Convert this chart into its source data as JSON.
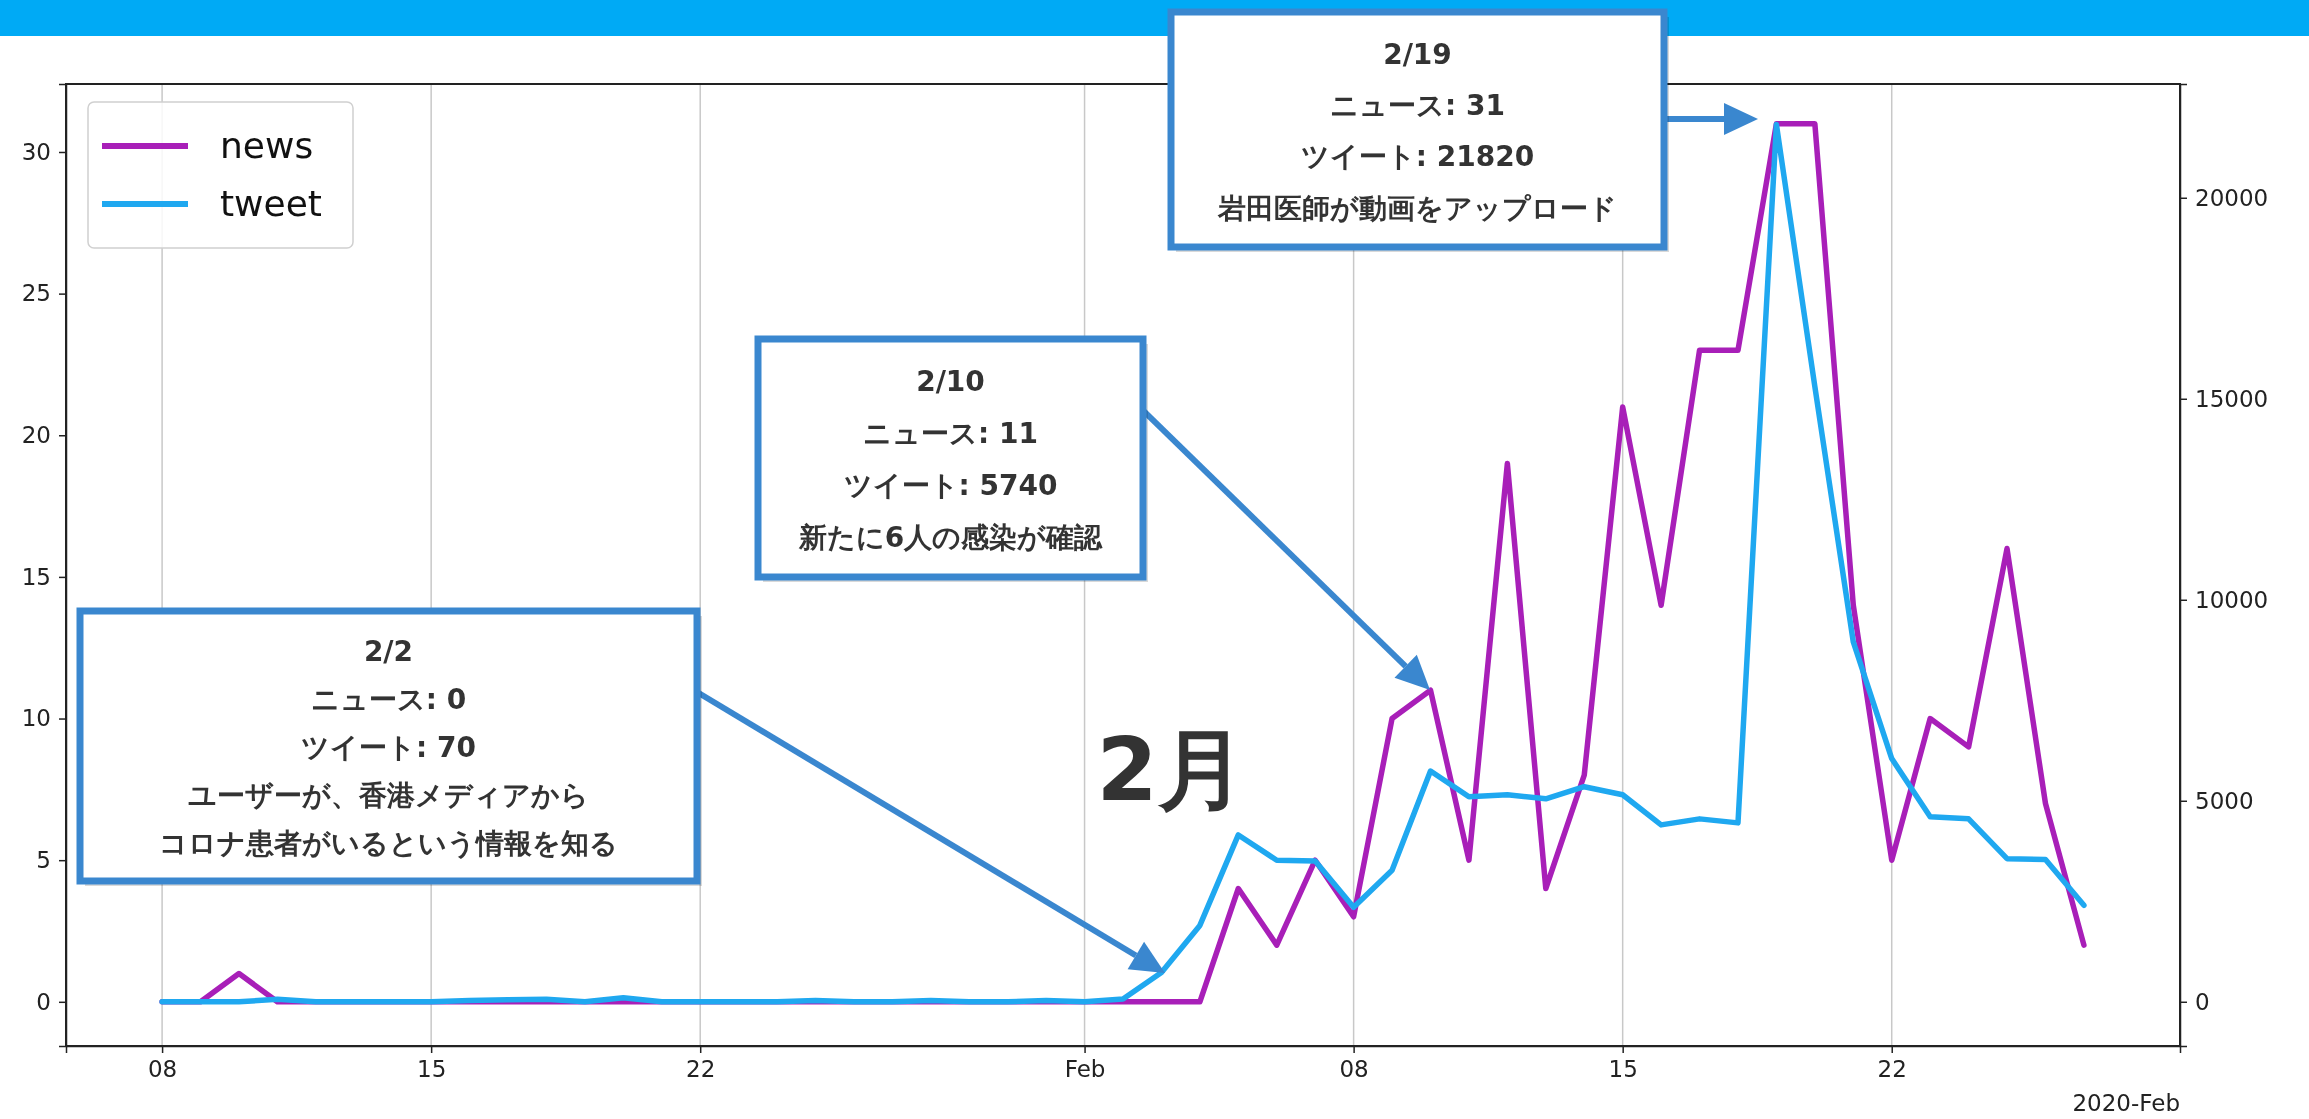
{
  "chart_data": {
    "type": "line",
    "x": [
      "2020-01-08",
      "2020-01-09",
      "2020-01-10",
      "2020-01-11",
      "2020-01-12",
      "2020-01-13",
      "2020-01-14",
      "2020-01-15",
      "2020-01-16",
      "2020-01-17",
      "2020-01-18",
      "2020-01-19",
      "2020-01-20",
      "2020-01-21",
      "2020-01-22",
      "2020-01-23",
      "2020-01-24",
      "2020-01-25",
      "2020-01-26",
      "2020-01-27",
      "2020-01-28",
      "2020-01-29",
      "2020-01-30",
      "2020-01-31",
      "2020-02-01",
      "2020-02-02",
      "2020-02-03",
      "2020-02-04",
      "2020-02-05",
      "2020-02-06",
      "2020-02-07",
      "2020-02-08",
      "2020-02-09",
      "2020-02-10",
      "2020-02-11",
      "2020-02-12",
      "2020-02-13",
      "2020-02-14",
      "2020-02-15",
      "2020-02-16",
      "2020-02-17",
      "2020-02-18",
      "2020-02-19",
      "2020-02-20",
      "2020-02-21",
      "2020-02-22",
      "2020-02-23",
      "2020-02-24",
      "2020-02-25",
      "2020-02-26",
      "2020-02-27"
    ],
    "series": [
      {
        "name": "news",
        "color": "#a81fb8",
        "values": [
          0,
          0,
          1,
          0,
          0,
          0,
          0,
          0,
          0,
          0,
          0,
          0,
          0,
          0,
          0,
          0,
          0,
          0,
          0,
          0,
          0,
          0,
          0,
          0,
          0,
          0,
          0,
          0,
          4,
          2,
          5,
          3,
          10,
          11,
          5,
          19,
          4,
          8,
          21,
          14,
          23,
          23,
          31,
          31,
          14,
          5,
          10,
          9,
          16,
          7,
          2
        ]
      },
      {
        "name": "tweet",
        "color": "#1fa8f0",
        "axis": "y2",
        "values": [
          0,
          0,
          0,
          60,
          0,
          0,
          0,
          0,
          30,
          50,
          60,
          0,
          100,
          0,
          0,
          0,
          0,
          30,
          0,
          0,
          30,
          0,
          0,
          30,
          0,
          70,
          730,
          1900,
          4150,
          3520,
          3500,
          2350,
          3270,
          5740,
          5100,
          5150,
          5050,
          5350,
          5150,
          4400,
          4550,
          4450,
          21820,
          15300,
          8950,
          6050,
          4600,
          4550,
          3560,
          3540,
          2400
        ]
      }
    ],
    "xlim": [
      "2020-01-05T12:00",
      "2020-02-29T12:00"
    ],
    "xticks": [
      {
        "value": "2020-01-08",
        "label": "08"
      },
      {
        "value": "2020-01-15",
        "label": "15"
      },
      {
        "value": "2020-01-22",
        "label": "22"
      },
      {
        "value": "2020-02-01",
        "label": "Feb"
      },
      {
        "value": "2020-02-08",
        "label": "08"
      },
      {
        "value": "2020-02-15",
        "label": "15"
      },
      {
        "value": "2020-02-22",
        "label": "22"
      }
    ],
    "xlabel": "2020-Feb",
    "ylim": [
      -1.56,
      32.4
    ],
    "yticks": [
      0,
      5,
      10,
      15,
      20,
      25,
      30
    ],
    "y2lim": [
      -1100,
      22830
    ],
    "y2ticks": [
      0,
      5000,
      10000,
      15000,
      20000
    ],
    "grid": "x",
    "legend": "top left",
    "line_style": "solid",
    "annotations": [
      "2/2\nニュース: 0\nツイート: 70\nユーザーが、香港メディアからコロナ患者がいるという情報を知る",
      "2/10\nニュース: 11\nツイート: 5740\n新たに6人の感染が確認",
      "2/19\nニュース: 31\nツイート: 21820\n岩田医師が動画をアップロード",
      "2月"
    ]
  }
}
